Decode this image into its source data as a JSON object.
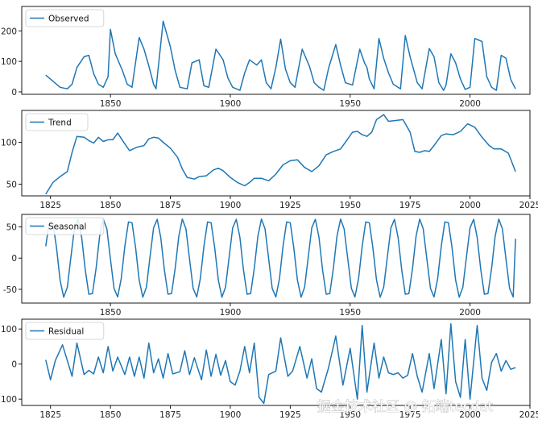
{
  "colors": {
    "line": "#1f77b4",
    "axes": "#000000",
    "background": "#ffffff"
  },
  "watermark": "掘金技术社区 @ 拓端tecdat",
  "chart_data": [
    {
      "type": "line",
      "legend": "Observed",
      "legend_position": "top-left",
      "grid": false,
      "xlim": [
        1813,
        2025
      ],
      "ylim": [
        -8,
        280
      ],
      "xticks": [
        "1850",
        "1900",
        "1950",
        "2000"
      ],
      "yticks": [
        "0",
        "100",
        "200"
      ],
      "x": [
        1823,
        1826,
        1829,
        1832,
        1834,
        1836,
        1839,
        1841,
        1843,
        1845,
        1847,
        1849,
        1850,
        1852,
        1855,
        1857,
        1859,
        1862,
        1864,
        1866,
        1868,
        1869,
        1872,
        1875,
        1877,
        1879,
        1882,
        1884,
        1887,
        1889,
        1891,
        1894,
        1897,
        1899,
        1901,
        1904,
        1906,
        1908,
        1911,
        1913,
        1915,
        1917,
        1919,
        1921,
        1923,
        1925,
        1927,
        1930,
        1933,
        1935,
        1937,
        1939,
        1941,
        1944,
        1946,
        1948,
        1951,
        1954,
        1956,
        1957,
        1958,
        1960,
        1962,
        1964,
        1966,
        1968,
        1971,
        1973,
        1975,
        1978,
        1980,
        1983,
        1985,
        1987,
        1989,
        1990,
        1992,
        1994,
        1996,
        1998,
        2000,
        2002,
        2005,
        2007,
        2009,
        2011,
        2013,
        2015,
        2017,
        2019
      ],
      "y": [
        55,
        35,
        15,
        10,
        25,
        80,
        115,
        120,
        60,
        25,
        15,
        50,
        205,
        125,
        70,
        25,
        15,
        178,
        140,
        85,
        25,
        10,
        232,
        148,
        70,
        15,
        10,
        95,
        105,
        20,
        15,
        140,
        105,
        45,
        15,
        5,
        62,
        105,
        88,
        105,
        30,
        10,
        80,
        173,
        75,
        30,
        15,
        140,
        84,
        30,
        15,
        5,
        78,
        155,
        87,
        30,
        22,
        140,
        95,
        80,
        42,
        10,
        175,
        110,
        62,
        25,
        10,
        185,
        115,
        30,
        10,
        142,
        115,
        30,
        5,
        22,
        125,
        95,
        42,
        8,
        15,
        175,
        165,
        50,
        15,
        5,
        120,
        110,
        40,
        10
      ]
    },
    {
      "type": "line",
      "legend": "Trend",
      "legend_position": "top-left",
      "grid": false,
      "xlim": [
        1813,
        2025
      ],
      "ylim": [
        36,
        138
      ],
      "xticks": [
        "1825",
        "1850",
        "1875",
        "1900",
        "1925",
        "1950",
        "1975",
        "2000",
        "2025"
      ],
      "yticks": [
        "50",
        "100"
      ],
      "x": [
        1823,
        1826,
        1829,
        1832,
        1834,
        1836,
        1839,
        1841,
        1843,
        1845,
        1847,
        1849,
        1851,
        1853,
        1856,
        1858,
        1861,
        1864,
        1866,
        1868,
        1870,
        1872,
        1875,
        1878,
        1880,
        1882,
        1885,
        1887,
        1890,
        1893,
        1895,
        1897,
        1900,
        1903,
        1906,
        1908,
        1910,
        1913,
        1916,
        1919,
        1922,
        1925,
        1928,
        1931,
        1934,
        1937,
        1940,
        1943,
        1946,
        1949,
        1951,
        1953,
        1955,
        1957,
        1959,
        1961,
        1964,
        1966,
        1969,
        1972,
        1975,
        1977,
        1979,
        1981,
        1983,
        1985,
        1988,
        1990,
        1993,
        1996,
        1999,
        2002,
        2005,
        2008,
        2010,
        2013,
        2016,
        2019
      ],
      "y": [
        38,
        52,
        59,
        65,
        88,
        107,
        106,
        102,
        99,
        106,
        101,
        103,
        103,
        111,
        98,
        90,
        94,
        96,
        104,
        106,
        105,
        100,
        93,
        82,
        68,
        58,
        56,
        59,
        60,
        67,
        69,
        66,
        58,
        52,
        48,
        52,
        57,
        57,
        54,
        62,
        73,
        78,
        79,
        70,
        65,
        72,
        85,
        89,
        92,
        104,
        112,
        113,
        109,
        107,
        112,
        127,
        133,
        125,
        126,
        127,
        112,
        89,
        88,
        90,
        89,
        96,
        108,
        110,
        109,
        113,
        122,
        118,
        106,
        96,
        92,
        92,
        87,
        65
      ]
    },
    {
      "type": "line",
      "legend": "Seasonal",
      "legend_position": "top-left",
      "grid": false,
      "xlim": [
        1813,
        2025
      ],
      "ylim": [
        -72,
        70
      ],
      "xticks": [
        "1850",
        "1900",
        "1950",
        "2000"
      ],
      "yticks": [
        "50",
        "0",
        "-50"
      ],
      "period": 11,
      "amplitude": 63,
      "x_start": 1823,
      "x_end": 2019,
      "start_value": 19,
      "end_value": 31
    },
    {
      "type": "line",
      "legend": "Residual",
      "legend_position": "top-left",
      "grid": false,
      "xlim": [
        1813,
        2025
      ],
      "ylim": [
        -118,
        128
      ],
      "xticks": [
        "1825",
        "1850",
        "1875",
        "1900",
        "1925",
        "1950",
        "1975",
        "2000",
        "2025"
      ],
      "yticks": [
        "100",
        "0",
        "100"
      ],
      "x": [
        1823,
        1825,
        1827,
        1830,
        1832,
        1834,
        1836,
        1839,
        1841,
        1843,
        1845,
        1847,
        1849,
        1851,
        1853,
        1856,
        1858,
        1860,
        1862,
        1864,
        1866,
        1868,
        1870,
        1872,
        1874,
        1876,
        1879,
        1881,
        1883,
        1885,
        1888,
        1890,
        1892,
        1894,
        1896,
        1898,
        1900,
        1902,
        1904,
        1906,
        1908,
        1910,
        1912,
        1914,
        1916,
        1919,
        1921,
        1924,
        1926,
        1929,
        1932,
        1934,
        1936,
        1938,
        1941,
        1944,
        1947,
        1950,
        1953,
        1955,
        1957,
        1960,
        1962,
        1964,
        1966,
        1968,
        1970,
        1972,
        1974,
        1976,
        1978,
        1980,
        1983,
        1985,
        1988,
        1990,
        1992,
        1994,
        1996,
        1998,
        2000,
        2003,
        2005,
        2007,
        2009,
        2011,
        2013,
        2015,
        2017,
        2019
      ],
      "y": [
        12,
        -45,
        10,
        55,
        10,
        -35,
        60,
        -30,
        -18,
        -28,
        20,
        -25,
        50,
        -20,
        20,
        -30,
        20,
        -35,
        20,
        -40,
        60,
        -25,
        15,
        -40,
        30,
        -28,
        -22,
        38,
        -30,
        18,
        -45,
        40,
        -35,
        28,
        -32,
        10,
        -50,
        -60,
        -20,
        50,
        -25,
        60,
        -95,
        -112,
        -30,
        -20,
        75,
        -35,
        -20,
        50,
        -40,
        15,
        -70,
        -80,
        -10,
        80,
        -60,
        45,
        -100,
        110,
        -80,
        60,
        -40,
        20,
        -25,
        -30,
        -25,
        -40,
        -32,
        30,
        -35,
        -80,
        30,
        -70,
        70,
        -85,
        115,
        -50,
        -95,
        70,
        -100,
        110,
        -40,
        -75,
        5,
        30,
        -20,
        10,
        -15,
        -10
      ]
    }
  ]
}
